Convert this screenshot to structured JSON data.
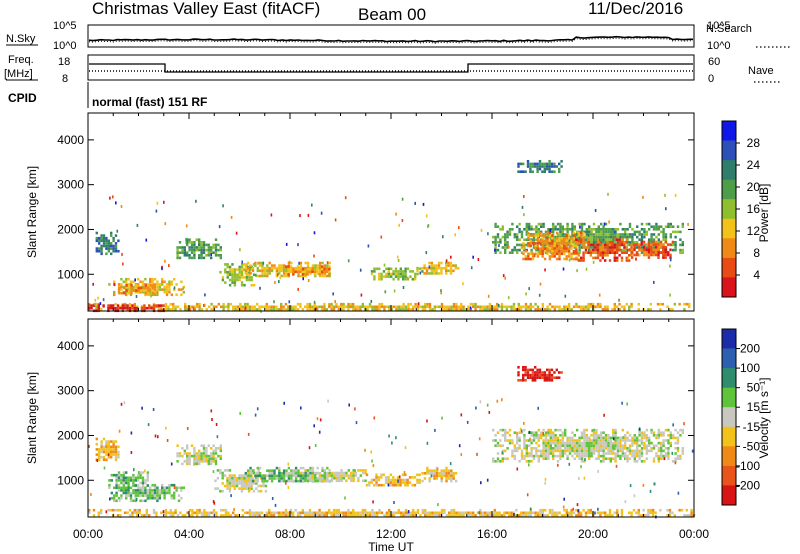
{
  "header": {
    "title": "Christmas Valley East (fitACF)",
    "beam": "Beam 00",
    "date": "11/Dec/2016"
  },
  "status_panels": {
    "n_sky_label": "N.Sky",
    "n_search_label": "N.Search",
    "n_scale_top": "10^5",
    "n_scale_bottom": "10^0",
    "freq_label": "Freq.",
    "freq_unit": "[MHz]",
    "freq_ticks": [
      "18",
      "8"
    ],
    "nave_label": "Nave",
    "nave_ticks": [
      "60",
      "0"
    ],
    "cpid_label": "CPID",
    "cpid_text": "normal (fast) 151 RF"
  },
  "axes": {
    "y_label": "Slant Range [km]",
    "y_ticks": [
      "1000",
      "2000",
      "3000",
      "4000"
    ],
    "x_ticks": [
      "00:00",
      "04:00",
      "08:00",
      "12:00",
      "16:00",
      "20:00",
      "00:00"
    ],
    "x_label": "Time UT"
  },
  "power_colorbar": {
    "label": "Power [dB]",
    "ticks": [
      "4",
      "8",
      "12",
      "16",
      "20",
      "24",
      "28"
    ],
    "colors": [
      "#1018e8",
      "#2c4fb8",
      "#2f7d6a",
      "#4d9d4a",
      "#8fbf2e",
      "#f2c21a",
      "#f08a17",
      "#e84c14",
      "#d9141b"
    ]
  },
  "velocity_colorbar": {
    "label": "Velocity [m s⁻¹]",
    "ticks": [
      "200",
      "100",
      "50",
      "15",
      "-15",
      "-50",
      "-100",
      "-200"
    ],
    "colors": [
      "#1c2ca8",
      "#2c5fb0",
      "#2f8c6c",
      "#5fc43c",
      "#c8c8c0",
      "#f2c21a",
      "#f08a17",
      "#e8541a",
      "#d91414"
    ]
  },
  "chart_data": [
    {
      "type": "heatmap",
      "title": "Power",
      "xlabel": "Time UT",
      "ylabel": "Slant Range [km]",
      "xlim": [
        0,
        24
      ],
      "ylim": [
        180,
        4600
      ],
      "echo_regions": [
        {
          "t": [
            0.3,
            1.2
          ],
          "r": [
            1450,
            1950
          ],
          "level": 2
        },
        {
          "t": [
            0.8,
            3.8
          ],
          "r": [
            560,
            920
          ],
          "level": 5
        },
        {
          "t": [
            1.2,
            2.6
          ],
          "r": [
            600,
            780
          ],
          "level": 6
        },
        {
          "t": [
            3.5,
            5.3
          ],
          "r": [
            1350,
            1800
          ],
          "level": 3
        },
        {
          "t": [
            5.2,
            6.6
          ],
          "r": [
            780,
            1250
          ],
          "level": 4
        },
        {
          "t": [
            6.2,
            9.6
          ],
          "r": [
            980,
            1280
          ],
          "level": 5
        },
        {
          "t": [
            7.8,
            9.6
          ],
          "r": [
            1000,
            1200
          ],
          "level": 6
        },
        {
          "t": [
            11.2,
            13.2
          ],
          "r": [
            880,
            1150
          ],
          "level": 4
        },
        {
          "t": [
            13.0,
            14.7
          ],
          "r": [
            1020,
            1280
          ],
          "level": 5
        },
        {
          "t": [
            16.0,
            23.6
          ],
          "r": [
            1500,
            2150
          ],
          "level": 3
        },
        {
          "t": [
            17.2,
            19.6
          ],
          "r": [
            1350,
            1950
          ],
          "level": 6
        },
        {
          "t": [
            19.2,
            21.5
          ],
          "r": [
            1300,
            1800
          ],
          "level": 7
        },
        {
          "t": [
            21.5,
            23.2
          ],
          "r": [
            1350,
            1750
          ],
          "level": 7
        },
        {
          "t": [
            17.0,
            18.8
          ],
          "r": [
            3300,
            3550
          ],
          "level": 2
        },
        {
          "t": [
            0.0,
            24.0
          ],
          "r": [
            200,
            360
          ],
          "level": 5
        },
        {
          "t": [
            0.0,
            3.0
          ],
          "r": [
            200,
            330
          ],
          "level": 8
        }
      ]
    },
    {
      "type": "heatmap",
      "title": "Velocity",
      "xlabel": "Time UT",
      "ylabel": "Slant Range [km]",
      "xlim": [
        0,
        24
      ],
      "ylim": [
        180,
        4600
      ],
      "echo_regions": [
        {
          "t": [
            0.3,
            1.2
          ],
          "r": [
            1450,
            1950
          ],
          "level": 5
        },
        {
          "t": [
            0.8,
            3.8
          ],
          "r": [
            560,
            920
          ],
          "level": 3
        },
        {
          "t": [
            0.8,
            2.4
          ],
          "r": [
            900,
            1200
          ],
          "level": 3
        },
        {
          "t": [
            3.5,
            5.3
          ],
          "r": [
            1350,
            1800
          ],
          "level": 4
        },
        {
          "t": [
            5.0,
            7.0
          ],
          "r": [
            780,
            1250
          ],
          "level": 4
        },
        {
          "t": [
            6.2,
            9.6
          ],
          "r": [
            960,
            1300
          ],
          "level": 3
        },
        {
          "t": [
            8.0,
            11.0
          ],
          "r": [
            1000,
            1250
          ],
          "level": 4
        },
        {
          "t": [
            11.0,
            13.2
          ],
          "r": [
            860,
            1150
          ],
          "level": 5
        },
        {
          "t": [
            13.2,
            14.6
          ],
          "r": [
            980,
            1300
          ],
          "level": 5
        },
        {
          "t": [
            16.0,
            23.6
          ],
          "r": [
            1450,
            2150
          ],
          "level": 4
        },
        {
          "t": [
            17.0,
            18.8
          ],
          "r": [
            3250,
            3550
          ],
          "level": 8
        },
        {
          "t": [
            0.0,
            24.0
          ],
          "r": [
            200,
            360
          ],
          "level": 5
        }
      ]
    }
  ]
}
